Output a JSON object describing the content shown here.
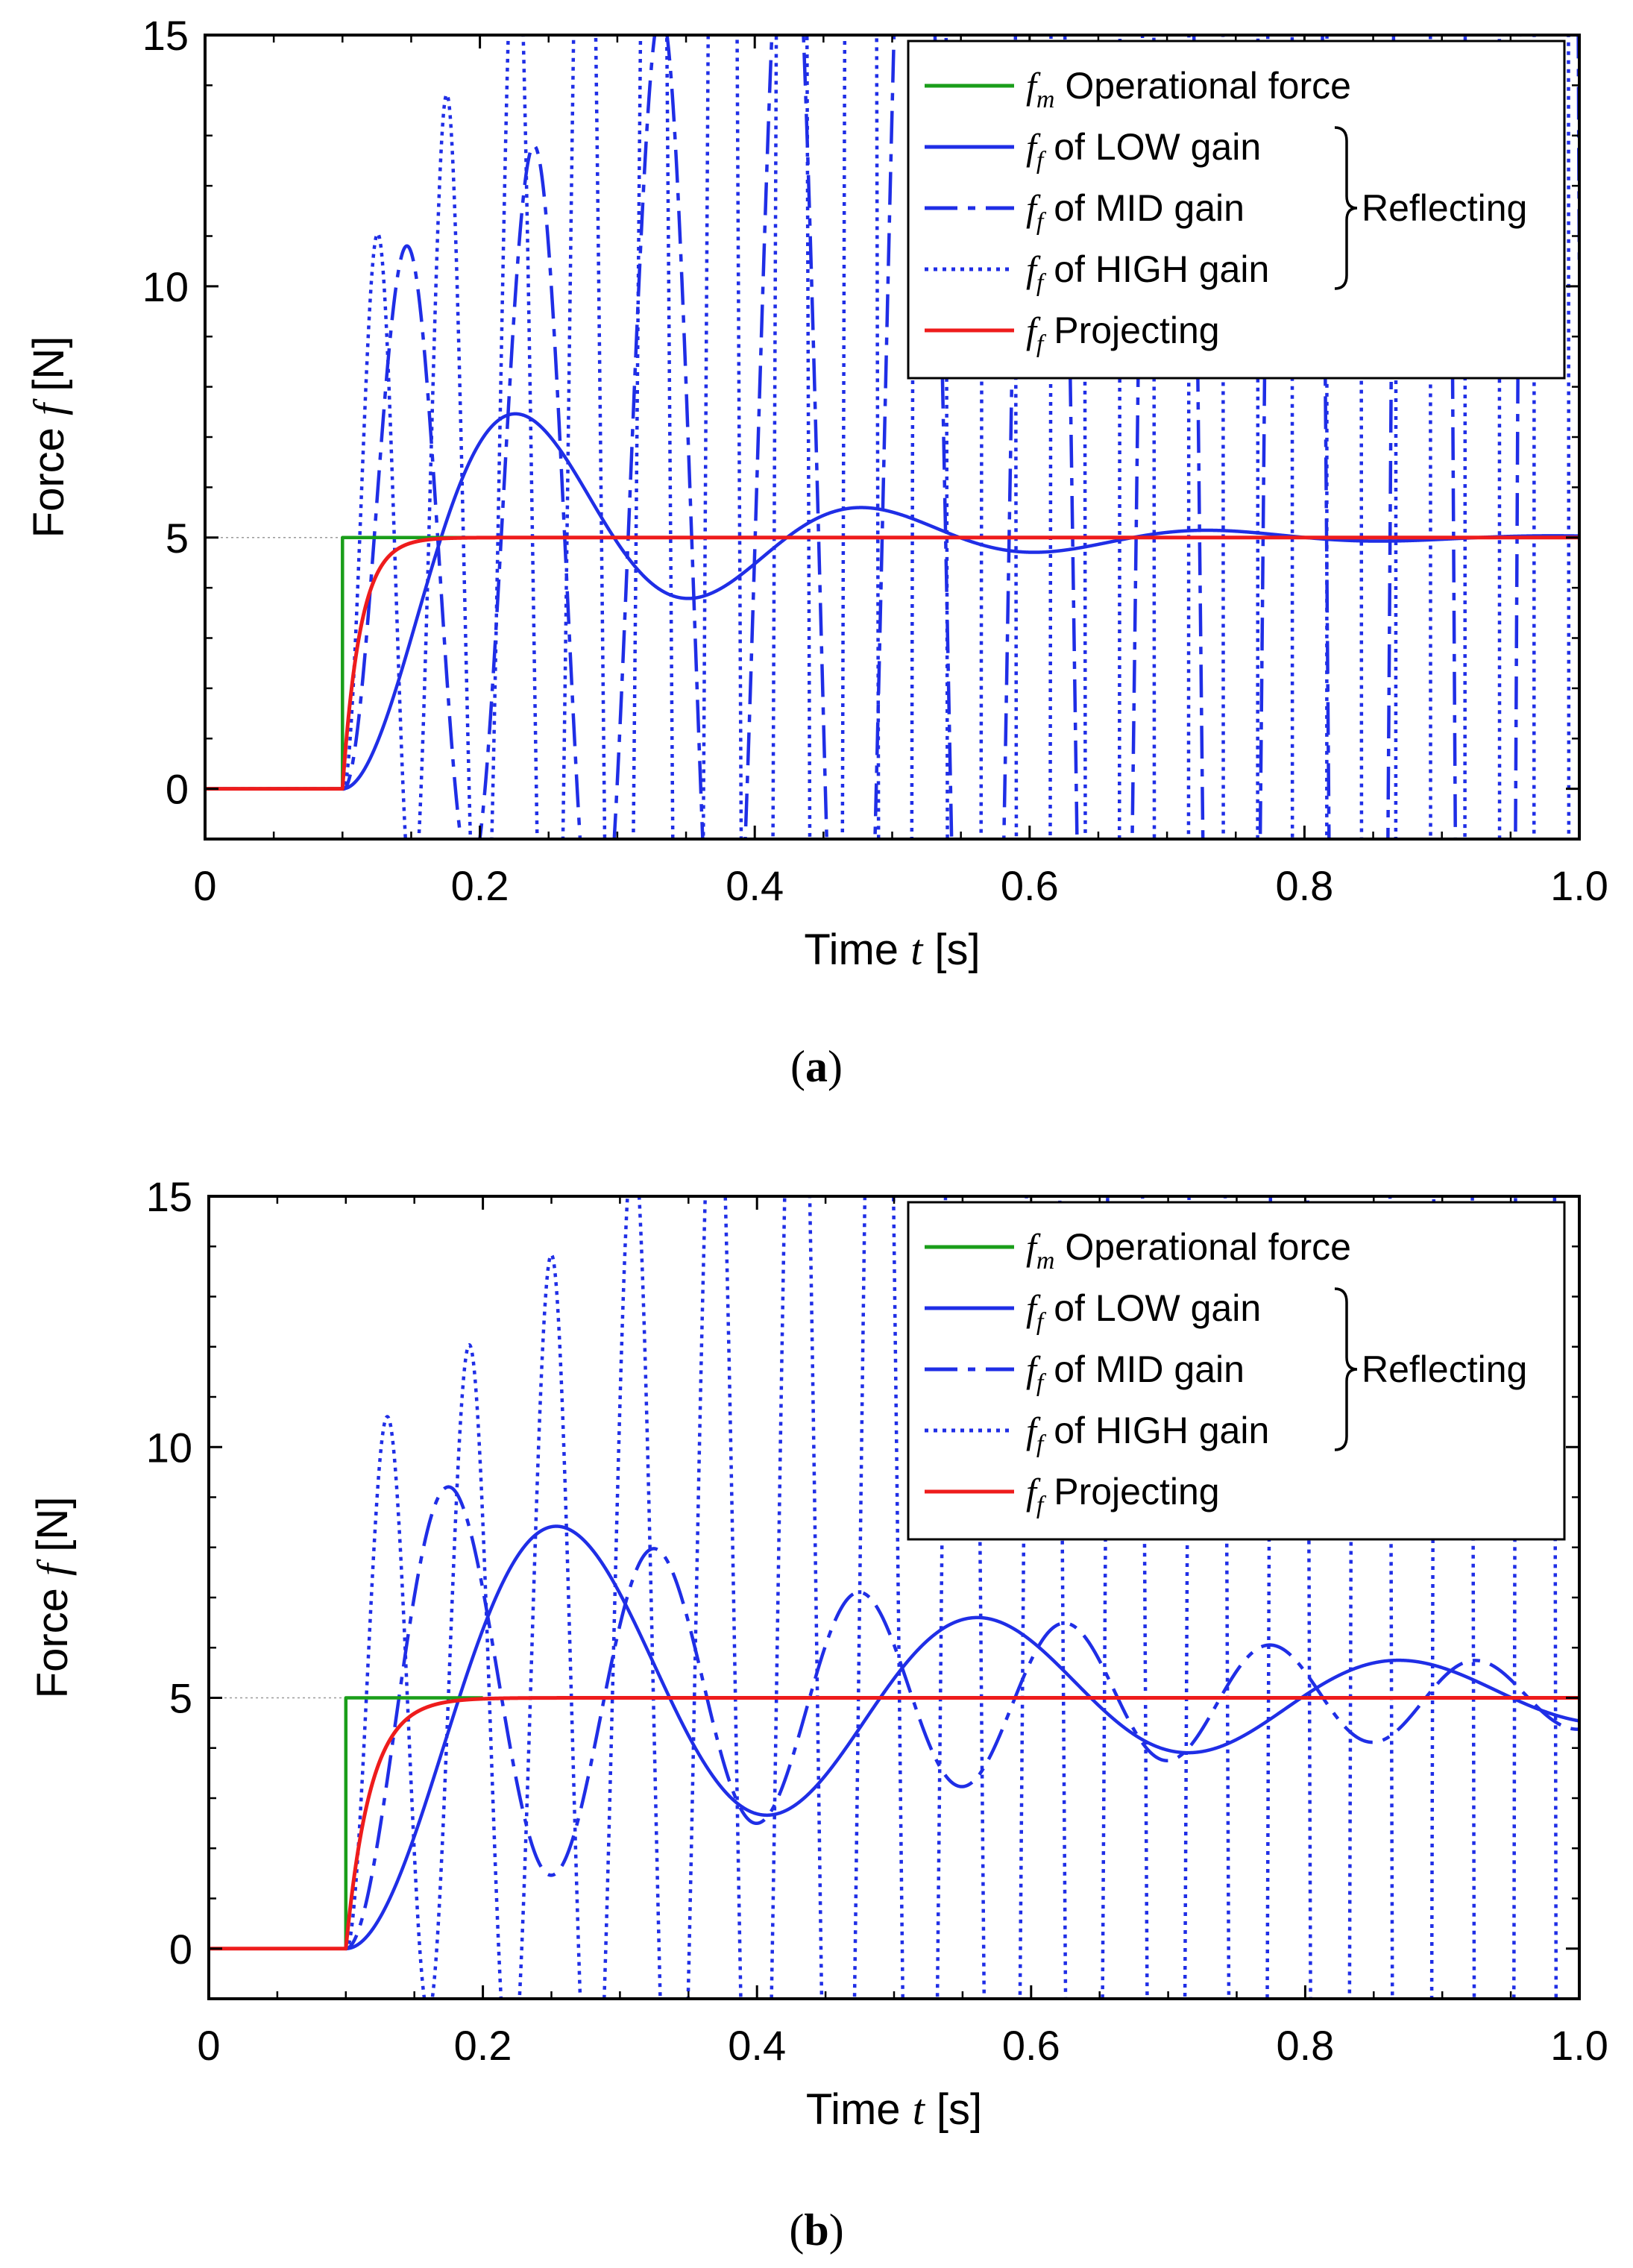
{
  "colors": {
    "green": "#1a9e1a",
    "blue": "#1f2ee6",
    "red": "#ee1c1c",
    "guide": "#9a9a9a"
  },
  "chart_data": [
    {
      "caption": "(a)",
      "type": "line",
      "xlabel": {
        "text": "Time ",
        "var": "t",
        "unit": " [s]"
      },
      "ylabel": {
        "text": "Force ",
        "var": "f",
        "unit": " [N]"
      },
      "xlim": [
        0,
        1.0
      ],
      "ylim": [
        -1,
        15
      ],
      "xticks": [
        0,
        0.2,
        0.4,
        0.6,
        0.8,
        1.0
      ],
      "xtick_labels": [
        "0",
        "0.2",
        "0.4",
        "0.6",
        "0.8",
        "1.0"
      ],
      "yticks": [
        0,
        5,
        10,
        15
      ],
      "ytick_labels": [
        "0",
        "5",
        "10",
        "15"
      ],
      "grid": false,
      "reference_line": 5,
      "legend": {
        "placement": "top-right",
        "group_label": "Reflecting",
        "entries": [
          {
            "sym": "f",
            "sub": "m",
            "text": "Operational force",
            "color": "green",
            "dash": "solid"
          },
          {
            "sym": "f",
            "sub": "f",
            "text": "of LOW gain",
            "color": "blue",
            "dash": "solid"
          },
          {
            "sym": "f",
            "sub": "f",
            "text": "of MID gain",
            "color": "blue",
            "dash": "dashdot"
          },
          {
            "sym": "f",
            "sub": "f",
            "text": "of HIGH gain",
            "color": "blue",
            "dash": "dotted"
          },
          {
            "sym": "f",
            "sub": "f",
            "text": "Projecting",
            "color": "red",
            "dash": "solid"
          }
        ]
      },
      "series": [
        {
          "name": "Operational force",
          "kind": "step",
          "t0": 0.1,
          "amplitude": 5
        },
        {
          "name": "of LOW gain",
          "kind": "damped",
          "t0": 0.1,
          "amplitude": 5,
          "omega": 25.6,
          "zeta": 0.22,
          "growth": 0
        },
        {
          "name": "of MID gain",
          "kind": "damped",
          "t0": 0.1,
          "amplitude": 5,
          "omega": 68,
          "zeta": 0,
          "growth": 3.2
        },
        {
          "name": "of HIGH gain",
          "kind": "damped",
          "t0": 0.1,
          "amplitude": 5,
          "omega": 125,
          "zeta": 0,
          "growth": 7.5
        },
        {
          "name": "Projecting",
          "kind": "firstorder",
          "t0": 0.1,
          "amplitude": 5,
          "tau": 0.013
        }
      ]
    },
    {
      "caption": "(b)",
      "type": "line",
      "xlabel": {
        "text": "Time ",
        "var": "t",
        "unit": " [s]"
      },
      "ylabel": {
        "text": "Force ",
        "var": "f",
        "unit": " [N]"
      },
      "xlim": [
        0,
        1.0
      ],
      "ylim": [
        -1,
        15
      ],
      "xticks": [
        0,
        0.2,
        0.4,
        0.6,
        0.8,
        1.0
      ],
      "xtick_labels": [
        "0",
        "0.2",
        "0.4",
        "0.6",
        "0.8",
        "1.0"
      ],
      "yticks": [
        0,
        5,
        10,
        15
      ],
      "ytick_labels": [
        "0",
        "5",
        "10",
        "15"
      ],
      "grid": false,
      "reference_line": 5,
      "legend": {
        "placement": "top-right",
        "group_label": "Reflecting",
        "entries": [
          {
            "sym": "f",
            "sub": "m",
            "text": "Operational force",
            "color": "green",
            "dash": "solid"
          },
          {
            "sym": "f",
            "sub": "f",
            "text": "of LOW gain",
            "color": "blue",
            "dash": "solid"
          },
          {
            "sym": "f",
            "sub": "f",
            "text": "of MID gain",
            "color": "blue",
            "dash": "dashdot"
          },
          {
            "sym": "f",
            "sub": "f",
            "text": "of HIGH gain",
            "color": "blue",
            "dash": "dotted"
          },
          {
            "sym": "f",
            "sub": "f",
            "text": "Projecting",
            "color": "red",
            "dash": "solid"
          }
        ]
      },
      "series": [
        {
          "name": "Operational force",
          "kind": "step",
          "t0": 0.1,
          "amplitude": 5
        },
        {
          "name": "of LOW gain",
          "kind": "damped",
          "t0": 0.1,
          "amplitude": 5,
          "omega": 20.6,
          "zeta": 0.12,
          "growth": 0
        },
        {
          "name": "of MID gain",
          "kind": "damped",
          "t0": 0.1,
          "amplitude": 5,
          "omega": 42,
          "zeta": 0.055,
          "growth": 0
        },
        {
          "name": "of HIGH gain",
          "kind": "damped",
          "t0": 0.1,
          "amplitude": 5,
          "omega": 105,
          "zeta": 0,
          "growth": 3.8
        },
        {
          "name": "Projecting",
          "kind": "firstorder",
          "t0": 0.1,
          "amplitude": 5,
          "tau": 0.018
        }
      ]
    }
  ]
}
